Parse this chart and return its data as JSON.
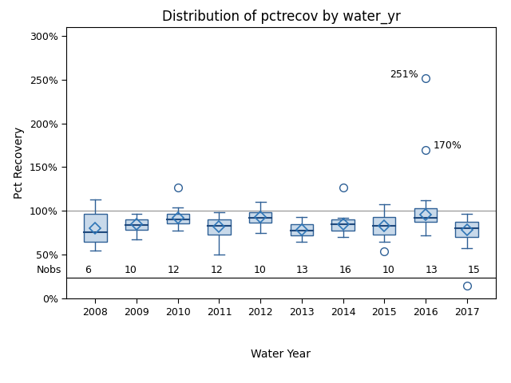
{
  "title": "Distribution of pctrecov by water_yr",
  "xlabel": "Water Year",
  "ylabel": "Pct Recovery",
  "years": [
    2008,
    2009,
    2010,
    2011,
    2012,
    2013,
    2014,
    2015,
    2016,
    2017
  ],
  "nobs": [
    6,
    10,
    12,
    12,
    10,
    13,
    16,
    10,
    13,
    15
  ],
  "box_data": {
    "2008": {
      "q1": 65,
      "median": 76,
      "q3": 97,
      "whisker_low": 55,
      "whisker_high": 113,
      "mean": 80,
      "outliers": []
    },
    "2009": {
      "q1": 79,
      "median": 84,
      "q3": 90,
      "whisker_low": 68,
      "whisker_high": 97,
      "mean": 85,
      "outliers": []
    },
    "2010": {
      "q1": 86,
      "median": 90,
      "q3": 97,
      "whisker_low": 78,
      "whisker_high": 104,
      "mean": 92,
      "outliers": [
        127
      ]
    },
    "2011": {
      "q1": 73,
      "median": 83,
      "q3": 90,
      "whisker_low": 50,
      "whisker_high": 99,
      "mean": 82,
      "outliers": []
    },
    "2012": {
      "q1": 87,
      "median": 92,
      "q3": 99,
      "whisker_low": 75,
      "whisker_high": 110,
      "mean": 93,
      "outliers": []
    },
    "2013": {
      "q1": 72,
      "median": 78,
      "q3": 85,
      "whisker_low": 65,
      "whisker_high": 93,
      "mean": 79,
      "outliers": []
    },
    "2014": {
      "q1": 78,
      "median": 85,
      "q3": 90,
      "whisker_low": 70,
      "whisker_high": 92,
      "mean": 85,
      "outliers": [
        127
      ]
    },
    "2015": {
      "q1": 73,
      "median": 83,
      "q3": 93,
      "whisker_low": 65,
      "whisker_high": 108,
      "mean": 83,
      "outliers": [
        54
      ]
    },
    "2016": {
      "q1": 88,
      "median": 92,
      "q3": 103,
      "whisker_low": 72,
      "whisker_high": 112,
      "mean": 96,
      "outliers": [
        170,
        251
      ]
    },
    "2017": {
      "q1": 70,
      "median": 80,
      "q3": 88,
      "whisker_low": 58,
      "whisker_high": 97,
      "mean": 79,
      "outliers": [
        15
      ]
    }
  },
  "box_color": "#c8d9ea",
  "box_edge_color": "#2e6096",
  "median_color": "#1f497d",
  "whisker_color": "#2e6096",
  "mean_marker_color": "#2e75b6",
  "outlier_color": "#2e6096",
  "ref_line_y": 100,
  "ref_line_color": "#a0a0a0",
  "ylim": [
    0,
    310
  ],
  "yticks": [
    0,
    50,
    100,
    150,
    200,
    250,
    300
  ],
  "ytick_labels": [
    "0%",
    "50%",
    "100%",
    "150%",
    "200%",
    "250%",
    "300%"
  ],
  "background_color": "#ffffff",
  "plot_bg_color": "#ffffff",
  "title_fontsize": 12,
  "label_fontsize": 10,
  "tick_fontsize": 9,
  "nobs_fontsize": 9
}
